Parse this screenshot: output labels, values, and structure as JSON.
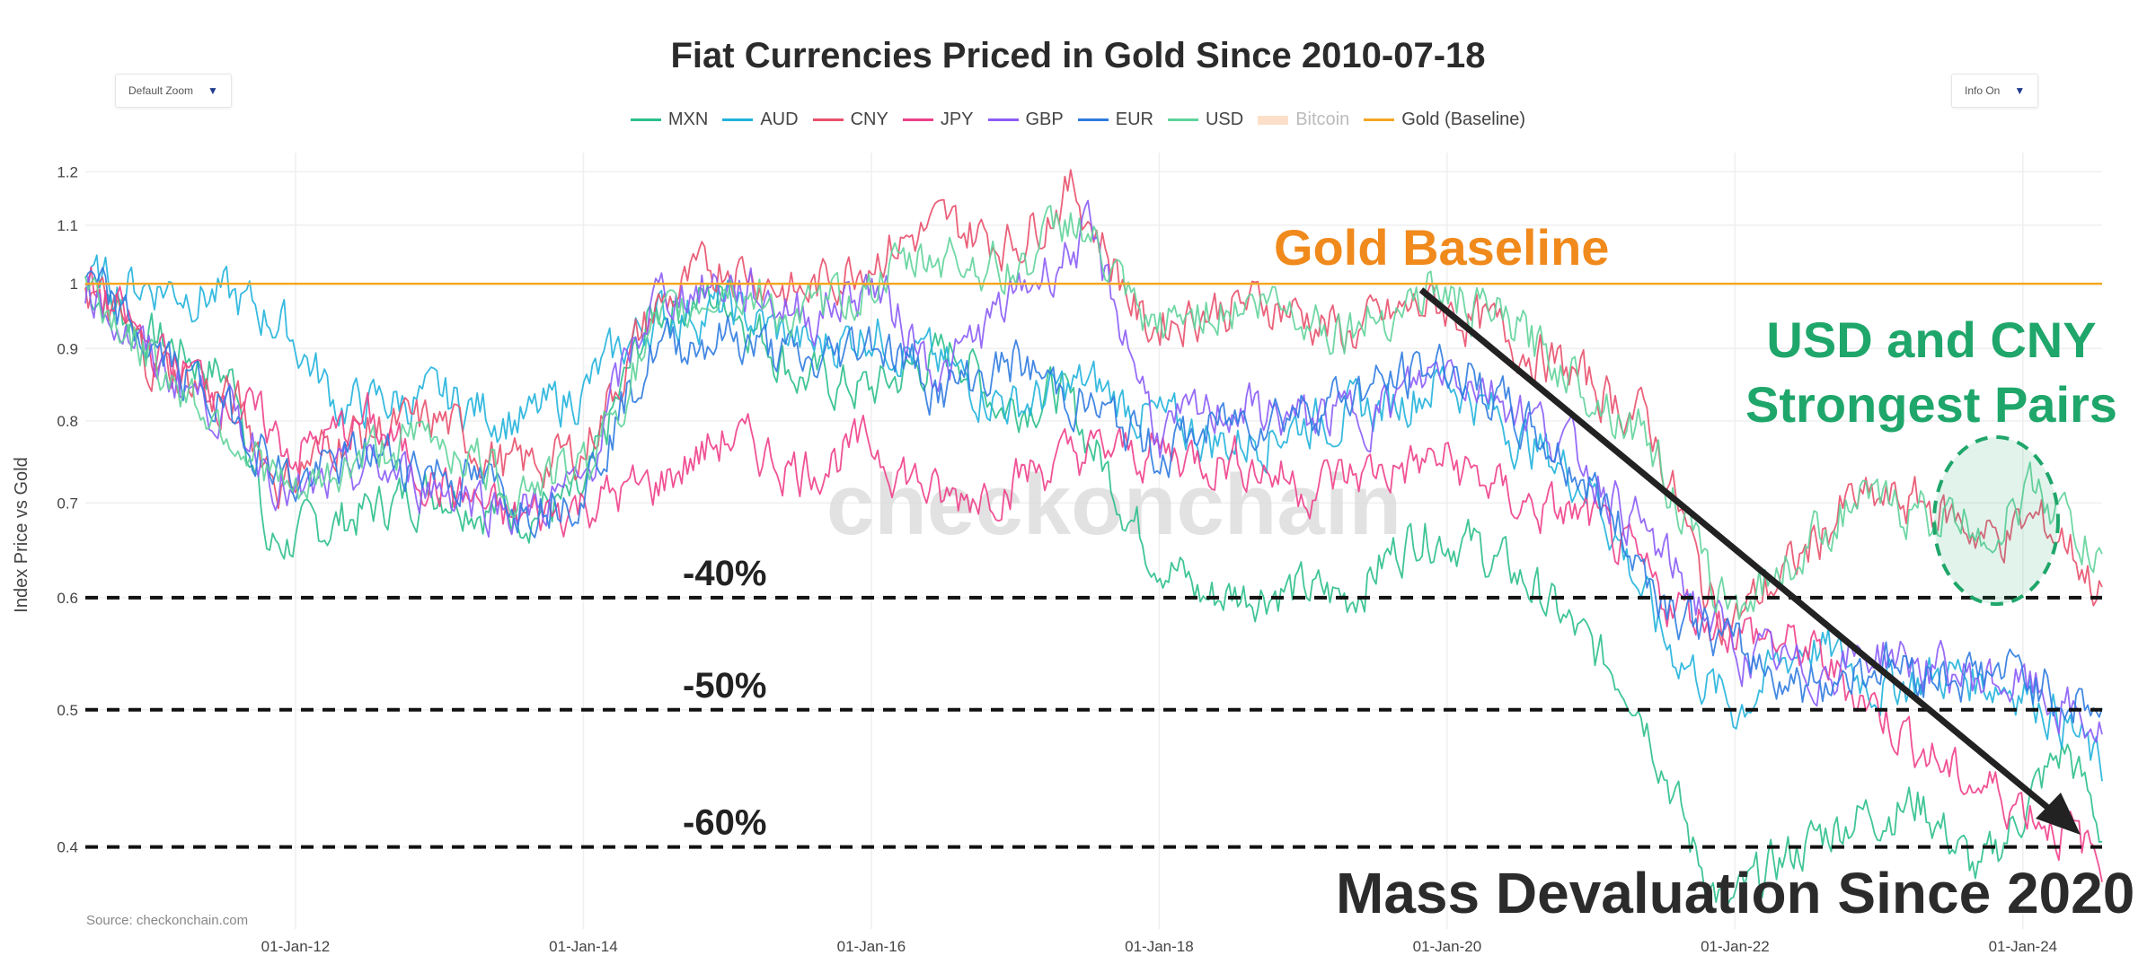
{
  "title": "Fiat Currencies Priced in Gold Since 2010-07-18",
  "controls": {
    "zoom_label": "Default Zoom",
    "info_label": "Info On",
    "arrow": "▼"
  },
  "source": "Source: checkonchain.com",
  "watermark": "checkonchain",
  "colors": {
    "MXN": "#2bbf8a",
    "AUD": "#21b3dc",
    "CNY": "#e8506c",
    "JPY": "#ee3f8a",
    "GBP": "#8b5cf6",
    "EUR": "#2f7be0",
    "USD": "#5fd39a",
    "Bitcoin": "#f4a460",
    "Gold": "#f5a623",
    "text": "#2b2b2b",
    "green_annotation": "#1fa66a",
    "orange_annotation": "#f08a1c"
  },
  "annotations": {
    "gold_baseline": "Gold Baseline",
    "usd_cny_1": "USD and CNY",
    "usd_cny_2": "Strongest Pairs",
    "mass_devaluation": "Mass Devaluation Since 2020",
    "pct_40": "-40%",
    "pct_50": "-50%",
    "pct_60": "-60%"
  },
  "chart_data": {
    "type": "line",
    "title": "Fiat Currencies Priced in Gold Since 2010-07-18",
    "xlabel": "",
    "ylabel": "Index Price vs Gold",
    "yscale": "log",
    "ylim": [
      0.35,
      1.22
    ],
    "xlim": [
      2010.54,
      2024.55
    ],
    "y_ticks": [
      0.4,
      0.5,
      0.6,
      0.7,
      0.8,
      0.9,
      1,
      1.1,
      1.2
    ],
    "y_tick_labels": [
      "0.4",
      "0.5",
      "0.6",
      "0.7",
      "0.8",
      "0.9",
      "1",
      "1.1",
      "1.2"
    ],
    "x_ticks": [
      2012,
      2014,
      2016,
      2018,
      2020,
      2022,
      2024
    ],
    "x_tick_labels": [
      "01-Jan-12",
      "01-Jan-14",
      "01-Jan-16",
      "01-Jan-18",
      "01-Jan-20",
      "01-Jan-22",
      "01-Jan-24"
    ],
    "reference_lines": [
      {
        "y": 0.6,
        "label": "-40%"
      },
      {
        "y": 0.5,
        "label": "-50%"
      },
      {
        "y": 0.4,
        "label": "-60%"
      }
    ],
    "legend": [
      "MXN",
      "AUD",
      "CNY",
      "JPY",
      "GBP",
      "EUR",
      "USD",
      "Bitcoin",
      "Gold (Baseline)"
    ],
    "legend_hidden": [
      "Bitcoin"
    ],
    "series": [
      {
        "name": "MXN",
        "x": [
          2010.54,
          2011.0,
          2011.6,
          2011.8,
          2012.3,
          2013.0,
          2013.4,
          2014.0,
          2014.5,
          2015.0,
          2015.5,
          2016.0,
          2016.6,
          2016.9,
          2017.3,
          2017.6,
          2017.9,
          2018.3,
          2018.8,
          2019.3,
          2019.8,
          2020.1,
          2020.6,
          2021.0,
          2021.3,
          2021.7,
          2021.95,
          2022.3,
          2022.8,
          2023.3,
          2023.7,
          2024.1,
          2024.3,
          2024.55
        ],
        "values": [
          1.0,
          0.92,
          0.85,
          0.65,
          0.68,
          0.72,
          0.69,
          0.7,
          0.96,
          0.98,
          0.86,
          0.84,
          0.9,
          0.82,
          0.84,
          0.75,
          0.66,
          0.6,
          0.61,
          0.6,
          0.67,
          0.66,
          0.61,
          0.55,
          0.52,
          0.4,
          0.36,
          0.39,
          0.42,
          0.43,
          0.38,
          0.44,
          0.47,
          0.41
        ]
      },
      {
        "name": "AUD",
        "x": [
          2010.54,
          2011.0,
          2011.5,
          2011.9,
          2012.3,
          2013.0,
          2013.6,
          2014.0,
          2014.5,
          2015.0,
          2015.6,
          2016.0,
          2016.6,
          2017.0,
          2017.5,
          2018.0,
          2018.5,
          2019.0,
          2019.6,
          2020.0,
          2020.5,
          2021.0,
          2021.5,
          2022.0,
          2022.5,
          2023.0,
          2023.5,
          2024.0,
          2024.3,
          2024.55
        ],
        "values": [
          1.0,
          1.0,
          0.98,
          0.94,
          0.82,
          0.83,
          0.8,
          0.84,
          0.95,
          0.96,
          0.9,
          0.93,
          0.86,
          0.82,
          0.85,
          0.8,
          0.77,
          0.8,
          0.82,
          0.86,
          0.78,
          0.72,
          0.56,
          0.5,
          0.56,
          0.52,
          0.53,
          0.52,
          0.49,
          0.45
        ]
      },
      {
        "name": "CNY",
        "x": [
          2010.54,
          2011.0,
          2011.6,
          2011.9,
          2012.3,
          2013.0,
          2013.5,
          2014.0,
          2014.5,
          2015.0,
          2015.5,
          2016.0,
          2016.5,
          2017.0,
          2017.4,
          2017.9,
          2018.3,
          2018.8,
          2019.3,
          2019.9,
          2020.4,
          2020.9,
          2021.4,
          2021.8,
          2022.0,
          2022.4,
          2022.8,
          2023.3,
          2023.8,
          2024.1,
          2024.3,
          2024.55
        ],
        "values": [
          1.0,
          0.88,
          0.82,
          0.72,
          0.78,
          0.8,
          0.74,
          0.76,
          0.96,
          1.04,
          0.98,
          1.05,
          1.1,
          1.07,
          1.17,
          0.93,
          0.96,
          0.97,
          0.92,
          0.97,
          0.92,
          0.86,
          0.8,
          0.6,
          0.58,
          0.63,
          0.7,
          0.7,
          0.66,
          0.68,
          0.66,
          0.6
        ]
      },
      {
        "name": "JPY",
        "x": [
          2010.54,
          2011.0,
          2011.6,
          2012.0,
          2012.5,
          2013.0,
          2013.5,
          2014.0,
          2014.5,
          2015.0,
          2015.5,
          2016.0,
          2016.5,
          2017.0,
          2017.5,
          2018.0,
          2018.6,
          2019.0,
          2019.6,
          2020.0,
          2020.5,
          2021.0,
          2021.5,
          2022.0,
          2022.5,
          2023.0,
          2023.5,
          2024.0,
          2024.3,
          2024.55
        ],
        "values": [
          1.0,
          0.9,
          0.82,
          0.76,
          0.8,
          0.72,
          0.68,
          0.7,
          0.72,
          0.78,
          0.74,
          0.77,
          0.7,
          0.73,
          0.76,
          0.76,
          0.75,
          0.72,
          0.74,
          0.75,
          0.7,
          0.68,
          0.6,
          0.57,
          0.55,
          0.5,
          0.45,
          0.43,
          0.41,
          0.39
        ]
      },
      {
        "name": "GBP",
        "x": [
          2010.54,
          2011.0,
          2011.6,
          2012.0,
          2012.5,
          2013.0,
          2013.6,
          2014.0,
          2014.5,
          2015.0,
          2015.6,
          2016.0,
          2016.5,
          2017.0,
          2017.5,
          2018.0,
          2018.5,
          2019.0,
          2019.6,
          2020.0,
          2020.5,
          2021.0,
          2021.5,
          2022.0,
          2022.5,
          2023.0,
          2023.5,
          2024.0,
          2024.3,
          2024.55
        ],
        "values": [
          1.0,
          0.88,
          0.8,
          0.7,
          0.74,
          0.72,
          0.69,
          0.72,
          0.98,
          1.0,
          0.95,
          1.0,
          0.86,
          0.98,
          1.08,
          0.78,
          0.82,
          0.8,
          0.82,
          0.88,
          0.82,
          0.74,
          0.64,
          0.55,
          0.53,
          0.55,
          0.53,
          0.52,
          0.5,
          0.48
        ]
      },
      {
        "name": "EUR",
        "x": [
          2010.54,
          2011.0,
          2011.6,
          2012.0,
          2012.5,
          2013.0,
          2013.6,
          2014.0,
          2014.5,
          2015.0,
          2015.6,
          2016.0,
          2016.5,
          2017.0,
          2017.5,
          2018.0,
          2018.5,
          2019.0,
          2019.6,
          2020.0,
          2020.5,
          2021.0,
          2021.5,
          2022.0,
          2022.5,
          2023.0,
          2023.5,
          2024.0,
          2024.3,
          2024.55
        ],
        "values": [
          1.0,
          0.9,
          0.8,
          0.72,
          0.76,
          0.74,
          0.7,
          0.72,
          0.9,
          0.92,
          0.87,
          0.92,
          0.84,
          0.88,
          0.82,
          0.76,
          0.8,
          0.82,
          0.85,
          0.88,
          0.8,
          0.72,
          0.6,
          0.55,
          0.52,
          0.54,
          0.53,
          0.53,
          0.51,
          0.5
        ]
      },
      {
        "name": "USD",
        "x": [
          2010.54,
          2011.0,
          2011.6,
          2012.0,
          2012.5,
          2013.0,
          2013.5,
          2014.0,
          2014.5,
          2015.0,
          2015.5,
          2016.0,
          2016.5,
          2017.0,
          2017.4,
          2017.9,
          2018.3,
          2018.8,
          2019.3,
          2019.9,
          2020.4,
          2020.9,
          2021.4,
          2021.8,
          2022.0,
          2022.4,
          2022.8,
          2023.3,
          2023.8,
          2024.1,
          2024.3,
          2024.55
        ],
        "values": [
          1.0,
          0.88,
          0.78,
          0.7,
          0.76,
          0.78,
          0.72,
          0.74,
          0.92,
          1.0,
          0.94,
          1.0,
          1.05,
          1.02,
          1.12,
          0.92,
          0.96,
          0.97,
          0.93,
          0.99,
          0.94,
          0.86,
          0.78,
          0.62,
          0.59,
          0.64,
          0.7,
          0.69,
          0.67,
          0.72,
          0.68,
          0.63
        ]
      },
      {
        "name": "Gold (Baseline)",
        "x": [
          2010.54,
          2024.55
        ],
        "values": [
          1.0,
          1.0
        ]
      }
    ]
  }
}
